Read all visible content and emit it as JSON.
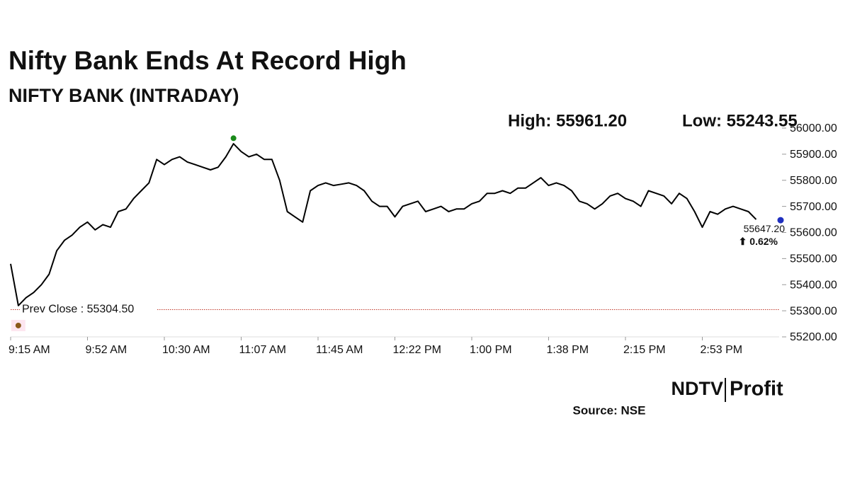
{
  "chart_data": {
    "type": "line",
    "title": "Nifty Bank Ends At Record High",
    "subtitle": "NIFTY BANK (INTRADAY)",
    "categories": [
      "9:15 AM",
      null,
      null,
      null,
      null,
      null,
      null,
      null,
      null,
      null,
      "9:52 AM",
      null,
      null,
      null,
      null,
      null,
      null,
      null,
      null,
      null,
      "10:30 AM",
      null,
      null,
      null,
      null,
      null,
      null,
      null,
      null,
      null,
      "11:07 AM",
      null,
      null,
      null,
      null,
      null,
      null,
      null,
      null,
      null,
      "11:45 AM",
      null,
      null,
      null,
      null,
      null,
      null,
      null,
      null,
      null,
      "12:22 PM",
      null,
      null,
      null,
      null,
      null,
      null,
      null,
      null,
      null,
      "1:00 PM",
      null,
      null,
      null,
      null,
      null,
      null,
      null,
      null,
      null,
      "1:38 PM",
      null,
      null,
      null,
      null,
      null,
      null,
      null,
      null,
      null,
      "2:15 PM",
      null,
      null,
      null,
      null,
      null,
      null,
      null,
      null,
      null,
      "2:53 PM",
      null,
      null,
      null,
      null,
      null,
      null,
      null
    ],
    "series": [
      {
        "color": "#000000",
        "values": [
          55480,
          55320,
          55350,
          55370,
          55400,
          55440,
          55530,
          55570,
          55590,
          55620,
          55640,
          55610,
          55630,
          55620,
          55680,
          55690,
          55730,
          55760,
          55790,
          55880,
          55860,
          55880,
          55890,
          55870,
          55860,
          55850,
          55840,
          55850,
          55890,
          55940,
          55910,
          55890,
          55900,
          55880,
          55880,
          55800,
          55680,
          55660,
          55640,
          55760,
          55780,
          55790,
          55780,
          55785,
          55790,
          55780,
          55760,
          55720,
          55700,
          55700,
          55660,
          55700,
          55710,
          55720,
          55680,
          55690,
          55700,
          55680,
          55690,
          55690,
          55710,
          55720,
          55750,
          55750,
          55760,
          55750,
          55770,
          55770,
          55790,
          55810,
          55780,
          55790,
          55780,
          55760,
          55720,
          55710,
          55690,
          55710,
          55740,
          55750,
          55730,
          55720,
          55700,
          55760,
          55750,
          55740,
          55710,
          55750,
          55730,
          55680,
          55620,
          55680,
          55670,
          55690,
          55700,
          55690,
          55680,
          55650
        ]
      }
    ],
    "ylim": [
      55200,
      56000
    ],
    "yticks": [
      {
        "value": 55200,
        "label": "55200.00"
      },
      {
        "value": 55300,
        "label": "55300.00"
      },
      {
        "value": 55400,
        "label": "55400.00"
      },
      {
        "value": 55500,
        "label": "55500.00"
      },
      {
        "value": 55600,
        "label": "55600.00"
      },
      {
        "value": 55700,
        "label": "55700.00"
      },
      {
        "value": 55800,
        "label": "55800.00"
      },
      {
        "value": 55900,
        "label": "55900.00"
      },
      {
        "value": 56000,
        "label": "56000.00"
      }
    ],
    "high": {
      "text": "High: 55961.20",
      "value": 55961.2,
      "color": "#1a8a1a"
    },
    "low": {
      "text": "Low: 55243.55",
      "value": 55243.55,
      "color": "#8a5a1a"
    },
    "prev_close": {
      "text": "Prev Close : 55304.50",
      "value": 55304.5,
      "color": "#c0392b"
    },
    "last": {
      "text": "55647.20",
      "value": 55647.2,
      "color": "#1f2fbf"
    },
    "change": {
      "text": "⬆ 0.62%",
      "color": "#1a8a1a"
    },
    "source": "Source: NSE",
    "logo": [
      "NDTV",
      "Profit"
    ]
  }
}
